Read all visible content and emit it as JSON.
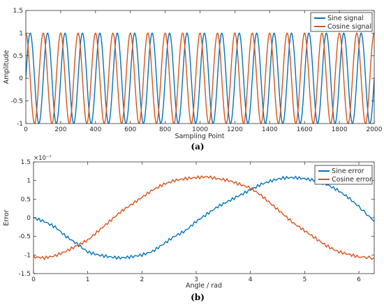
{
  "chart_data": [
    {
      "panel": "a",
      "caption": "(a)",
      "type": "line",
      "xlabel": "Sampling Point",
      "ylabel": "Amplitude",
      "xlim": [
        0,
        2000
      ],
      "ylim": [
        -1,
        1.5
      ],
      "xticks": [
        0,
        200,
        400,
        600,
        800,
        1000,
        1200,
        1400,
        1600,
        1800,
        2000
      ],
      "yticks": [
        -1,
        -0.5,
        0,
        0.5,
        1,
        1.5
      ],
      "ytick_labels": [
        "-1",
        "-0.5",
        "0",
        "0.5",
        "1",
        "1.5"
      ],
      "legend_position": "top-right",
      "grid": false,
      "series": [
        {
          "name": "Sine signal",
          "color": "#0072BD",
          "formula": "sin(2*pi*x/100)",
          "period_samples": 100,
          "amplitude": 1,
          "x_start": 0,
          "x_end": 2000
        },
        {
          "name": "Cosine signal",
          "color": "#D95319",
          "formula": "cos(2*pi*x/100)",
          "period_samples": 100,
          "amplitude": 1,
          "x_start": 0,
          "x_end": 2000
        }
      ]
    },
    {
      "panel": "b",
      "caption": "(b)",
      "type": "line",
      "xlabel": "Angle / rad",
      "ylabel": "Error",
      "y_exponent_label": "×10⁻⁷",
      "xlim": [
        0,
        6.283
      ],
      "ylim": [
        -1.5,
        1.5
      ],
      "xticks": [
        0,
        1,
        2,
        3,
        4,
        5,
        6
      ],
      "yticks": [
        -1.5,
        -1,
        -0.5,
        0,
        0.5,
        1,
        1.5
      ],
      "ytick_labels": [
        "-1.5",
        "-1",
        "-0.5",
        "0",
        "0.5",
        "1",
        "1.5"
      ],
      "legend_position": "top-right",
      "grid": false,
      "series": [
        {
          "name": "Sine error",
          "color": "#0072BD",
          "x": [
            0,
            0.2,
            0.4,
            0.6,
            0.8,
            1.0,
            1.2,
            1.4,
            1.6,
            1.8,
            2.0,
            2.2,
            2.4,
            2.6,
            2.8,
            3.0,
            3.2,
            3.4,
            3.6,
            3.8,
            4.0,
            4.2,
            4.4,
            4.6,
            4.8,
            5.0,
            5.2,
            5.4,
            5.6,
            5.8,
            6.0,
            6.283
          ],
          "y": [
            0,
            -0.1,
            -0.25,
            -0.5,
            -0.7,
            -0.92,
            -1.0,
            -1.05,
            -1.08,
            -1.05,
            -1.0,
            -0.9,
            -0.7,
            -0.5,
            -0.35,
            -0.1,
            0.1,
            0.3,
            0.45,
            0.6,
            0.75,
            0.9,
            1.0,
            1.07,
            1.08,
            1.05,
            1.0,
            0.9,
            0.75,
            0.55,
            0.3,
            -0.1
          ]
        },
        {
          "name": "Cosine error",
          "color": "#D95319",
          "x": [
            0,
            0.2,
            0.4,
            0.6,
            0.8,
            1.0,
            1.2,
            1.4,
            1.6,
            1.8,
            2.0,
            2.2,
            2.4,
            2.6,
            2.8,
            3.0,
            3.2,
            3.4,
            3.6,
            3.8,
            4.0,
            4.2,
            4.4,
            4.6,
            4.8,
            5.0,
            5.2,
            5.4,
            5.6,
            5.8,
            6.0,
            6.283
          ],
          "y": [
            -1.05,
            -1.08,
            -1.02,
            -0.9,
            -0.75,
            -0.6,
            -0.35,
            -0.1,
            0.15,
            0.35,
            0.55,
            0.75,
            0.9,
            1.0,
            1.05,
            1.08,
            1.1,
            1.05,
            1.0,
            0.9,
            0.8,
            0.6,
            0.35,
            0.1,
            -0.15,
            -0.35,
            -0.55,
            -0.75,
            -0.9,
            -0.98,
            -1.05,
            -1.08
          ]
        }
      ]
    }
  ]
}
